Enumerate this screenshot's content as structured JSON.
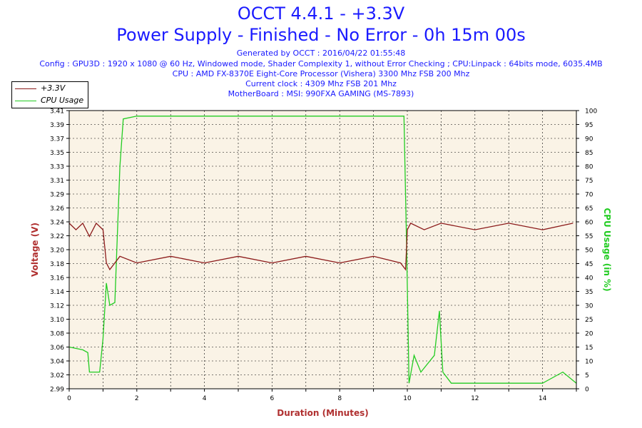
{
  "header": {
    "title": "OCCT 4.4.1 - +3.3V",
    "subtitle": "Power Supply - Finished - No Error - 0h 15m 00s",
    "generated": "Generated by OCCT : 2016/04/22 01:55:48",
    "config": "Config : GPU3D : 1920 x 1080 @ 60 Hz, Windowed mode, Shader Complexity 1, without Error Checking ; CPU:Linpack : 64bits mode, 6035.4MB",
    "cpu": "CPU : AMD FX-8370E Eight-Core Processor (Vishera) 3300 Mhz FSB 200 Mhz",
    "clock": "Current clock : 4309 Mhz FSB 201 Mhz",
    "motherboard": "MotherBoard : MSI: 990FXA GAMING (MS-7893)"
  },
  "colors": {
    "voltage": "#8b1a1a",
    "cpu": "#22cc22",
    "plot_bg": "#faf3e6",
    "title": "#1a1aff",
    "axis_title": "#b03030"
  },
  "chart_data": {
    "type": "line",
    "xlabel": "Duration (Minutes)",
    "ylabel": "Voltage (V)",
    "y2label": "CPU Usage (in %)",
    "xlim": [
      0,
      15
    ],
    "ylim": [
      2.99,
      3.41
    ],
    "y2lim": [
      0,
      100
    ],
    "x_ticks": [
      "0",
      "2",
      "4",
      "6",
      "8",
      "10",
      "12",
      "14"
    ],
    "y_ticks": [
      "2.99",
      "3.02",
      "3.04",
      "3.06",
      "3.08",
      "3.10",
      "3.12",
      "3.14",
      "3.16",
      "3.18",
      "3.20",
      "3.22",
      "3.24",
      "3.26",
      "3.29",
      "3.31",
      "3.33",
      "3.35",
      "3.37",
      "3.39",
      "3.41"
    ],
    "y2_ticks": [
      "0",
      "5",
      "10",
      "15",
      "20",
      "25",
      "30",
      "35",
      "40",
      "45",
      "50",
      "55",
      "60",
      "65",
      "70",
      "75",
      "80",
      "85",
      "90",
      "95",
      "100"
    ],
    "grid": true,
    "legend_position": "top-left",
    "series": [
      {
        "name": "+3.3V",
        "axis": "left",
        "x": [
          0,
          0.2,
          0.4,
          0.6,
          0.8,
          1.0,
          1.1,
          1.2,
          1.5,
          2.0,
          3.0,
          4.0,
          5.0,
          6.0,
          7.0,
          8.0,
          9.0,
          9.8,
          9.95,
          10.0,
          10.1,
          10.5,
          11.0,
          12.0,
          13.0,
          14.0,
          14.9
        ],
        "y": [
          3.24,
          3.23,
          3.24,
          3.22,
          3.24,
          3.23,
          3.18,
          3.17,
          3.19,
          3.18,
          3.19,
          3.18,
          3.19,
          3.18,
          3.19,
          3.18,
          3.19,
          3.18,
          3.17,
          3.23,
          3.24,
          3.23,
          3.24,
          3.23,
          3.24,
          3.23,
          3.24
        ]
      },
      {
        "name": "CPU Usage",
        "axis": "right",
        "x": [
          0,
          0.4,
          0.55,
          0.6,
          0.9,
          1.0,
          1.1,
          1.2,
          1.35,
          1.5,
          1.6,
          2.0,
          4.0,
          6.0,
          8.0,
          9.9,
          9.98,
          10.05,
          10.2,
          10.4,
          10.8,
          10.95,
          11.05,
          11.3,
          12.0,
          13.0,
          14.0,
          14.6,
          15.0
        ],
        "y": [
          15,
          14,
          13,
          6,
          6,
          18,
          38,
          30,
          31,
          80,
          97,
          98,
          98,
          98,
          98,
          98,
          50,
          2,
          12,
          6,
          12,
          28,
          6,
          2,
          2,
          2,
          2,
          6,
          2
        ]
      }
    ]
  }
}
